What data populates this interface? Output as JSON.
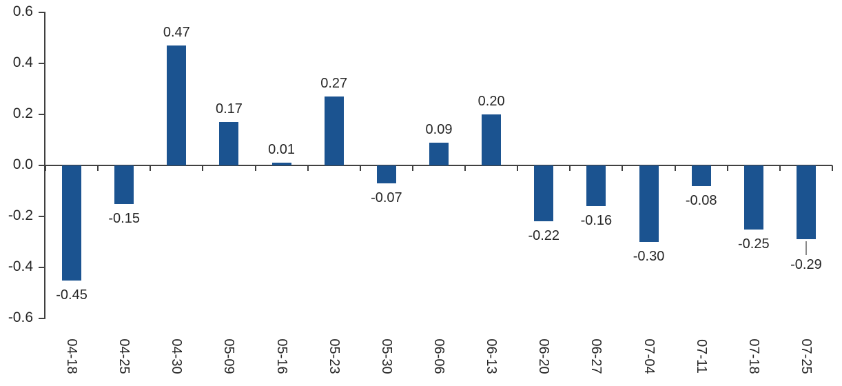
{
  "chart_data": {
    "type": "bar",
    "title": "",
    "xlabel": "",
    "ylabel": "",
    "categories": [
      "04-18",
      "04-25",
      "04-30",
      "05-09",
      "05-16",
      "05-23",
      "05-30",
      "06-06",
      "06-13",
      "06-20",
      "06-27",
      "07-04",
      "07-11",
      "07-18",
      "07-25"
    ],
    "values": [
      -0.45,
      -0.15,
      0.47,
      0.17,
      0.01,
      0.27,
      -0.07,
      0.09,
      0.2,
      -0.22,
      -0.16,
      -0.3,
      -0.08,
      -0.25,
      -0.29
    ],
    "value_labels": [
      "-0.45",
      "-0.15",
      "0.47",
      "0.17",
      "0.01",
      "0.27",
      "-0.07",
      "0.09",
      "0.20",
      "-0.22",
      "-0.16",
      "-0.30",
      "-0.08",
      "-0.25",
      "-0.29"
    ],
    "ylim": [
      -0.6,
      0.6
    ],
    "ytick_values": [
      0.6,
      0.4,
      0.2,
      0.0,
      -0.2,
      -0.4,
      -0.6
    ],
    "ytick_labels": [
      "0.6",
      "0.4",
      "0.2",
      "0.0",
      "-0.2",
      "-0.4",
      "-0.6"
    ],
    "bar_color": "#1B5390",
    "axis_color": "#404040",
    "text_color": "#262626",
    "leader_color": "#8a8a8a",
    "grid": false,
    "legend": false,
    "leader_line_category": "07-25",
    "x_label_rotation_deg": 90
  }
}
